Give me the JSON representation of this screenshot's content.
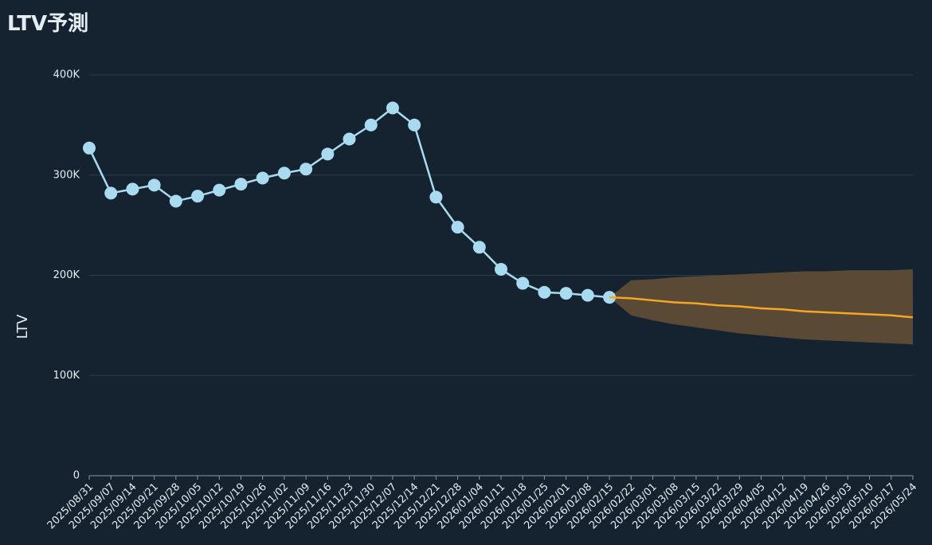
{
  "chart_data": {
    "type": "line",
    "title": "LTV予測",
    "y_label": "LTV",
    "categories": [
      "2025/08/31",
      "2025/09/07",
      "2025/09/14",
      "2025/09/21",
      "2025/09/28",
      "2025/10/05",
      "2025/10/12",
      "2025/10/19",
      "2025/10/26",
      "2025/11/02",
      "2025/11/09",
      "2025/11/16",
      "2025/11/23",
      "2025/11/30",
      "2025/12/07",
      "2025/12/14",
      "2025/12/21",
      "2025/12/28",
      "2026/01/04",
      "2026/01/11",
      "2026/01/18",
      "2026/01/25",
      "2026/02/01",
      "2026/02/08",
      "2026/02/15",
      "2026/02/22",
      "2026/03/01",
      "2026/03/08",
      "2026/03/15",
      "2026/03/22",
      "2026/03/29",
      "2026/04/05",
      "2026/04/12",
      "2026/04/19",
      "2026/04/26",
      "2026/05/03",
      "2026/05/10",
      "2026/05/17",
      "2026/05/24"
    ],
    "series": [
      {
        "color": "#a8daf0",
        "markers": true,
        "values": [
          327000,
          282000,
          286000,
          290000,
          274000,
          279000,
          285000,
          291000,
          297000,
          302000,
          306000,
          321000,
          336000,
          350000,
          367000,
          350000,
          278000,
          248000,
          228000,
          206000,
          192000,
          183000,
          182000,
          180000,
          178000,
          null,
          null,
          null,
          null,
          null,
          null,
          null,
          null,
          null,
          null,
          null,
          null,
          null,
          null
        ]
      },
      {
        "color": "#f5a623",
        "markers": false,
        "values": [
          null,
          null,
          null,
          null,
          null,
          null,
          null,
          null,
          null,
          null,
          null,
          null,
          null,
          null,
          null,
          null,
          null,
          null,
          null,
          null,
          null,
          null,
          null,
          null,
          178000,
          177000,
          175000,
          173000,
          172000,
          170000,
          169000,
          167000,
          166000,
          164000,
          163000,
          162000,
          161000,
          160000,
          158000
        ]
      }
    ],
    "band": {
      "color": "#5a4a35",
      "upper": [
        null,
        null,
        null,
        null,
        null,
        null,
        null,
        null,
        null,
        null,
        null,
        null,
        null,
        null,
        null,
        null,
        null,
        null,
        null,
        null,
        null,
        null,
        null,
        null,
        178000,
        195000,
        196000,
        198000,
        199000,
        200000,
        201000,
        202000,
        203000,
        204000,
        204000,
        205000,
        205000,
        205000,
        206000
      ],
      "lower": [
        null,
        null,
        null,
        null,
        null,
        null,
        null,
        null,
        null,
        null,
        null,
        null,
        null,
        null,
        null,
        null,
        null,
        null,
        null,
        null,
        null,
        null,
        null,
        null,
        178000,
        160000,
        155000,
        151000,
        148000,
        145000,
        142000,
        140000,
        138000,
        136000,
        135000,
        134000,
        133000,
        132000,
        131000
      ]
    },
    "ylim": [
      0,
      400000
    ],
    "yticks": [
      0,
      {
        "value": 100000,
        "label": "100K"
      },
      {
        "value": 200000,
        "label": "200K"
      },
      {
        "value": 300000,
        "label": "300K"
      },
      {
        "value": 400000,
        "label": "400K"
      }
    ],
    "grid": true
  }
}
